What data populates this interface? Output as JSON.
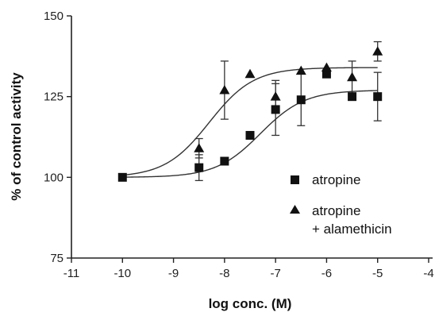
{
  "chart_data": {
    "type": "scatter",
    "title": "",
    "xlabel": "log conc. (M)",
    "ylabel": "% of control activity",
    "xlim": [
      -11,
      -4
    ],
    "ylim": [
      75,
      150
    ],
    "xticks": [
      -11,
      -10,
      -9,
      -8,
      -7,
      -6,
      -5,
      -4
    ],
    "yticks": [
      75,
      100,
      125,
      150
    ],
    "grid": false,
    "legend_position": "right",
    "series": [
      {
        "name": "atropine",
        "marker": "square",
        "points": [
          {
            "x": -10,
            "y": 100,
            "err": 0
          },
          {
            "x": -8.5,
            "y": 103,
            "err": 4
          },
          {
            "x": -8,
            "y": 105,
            "err": 0
          },
          {
            "x": -7.5,
            "y": 113,
            "err": 0
          },
          {
            "x": -7,
            "y": 121,
            "err": 8
          },
          {
            "x": -6.5,
            "y": 124,
            "err": 8
          },
          {
            "x": -6,
            "y": 132,
            "err": 0
          },
          {
            "x": -5.5,
            "y": 125,
            "err": 0
          },
          {
            "x": -5,
            "y": 125,
            "err": 7.5
          }
        ],
        "fit": {
          "bottom": 100,
          "top": 127,
          "logEC50": -7.3,
          "hill": 1
        }
      },
      {
        "name": "atropine\n+ alamethicin",
        "marker": "triangle",
        "points": [
          {
            "x": -8.5,
            "y": 109,
            "err": 3
          },
          {
            "x": -8,
            "y": 127,
            "err": 9
          },
          {
            "x": -7.5,
            "y": 132,
            "err": 0
          },
          {
            "x": -7,
            "y": 125,
            "err": 5
          },
          {
            "x": -6.5,
            "y": 133,
            "err": 0
          },
          {
            "x": -6,
            "y": 134,
            "err": 0
          },
          {
            "x": -5.5,
            "y": 131,
            "err": 5
          },
          {
            "x": -5,
            "y": 139,
            "err": 3
          }
        ],
        "fit": {
          "bottom": 100,
          "top": 134,
          "logEC50": -8.3,
          "hill": 1
        }
      }
    ],
    "legend": {
      "line1": "atropine",
      "line2a": "atropine",
      "line2b": "+ alamethicin"
    },
    "colors": {
      "ink": "#111111"
    }
  }
}
